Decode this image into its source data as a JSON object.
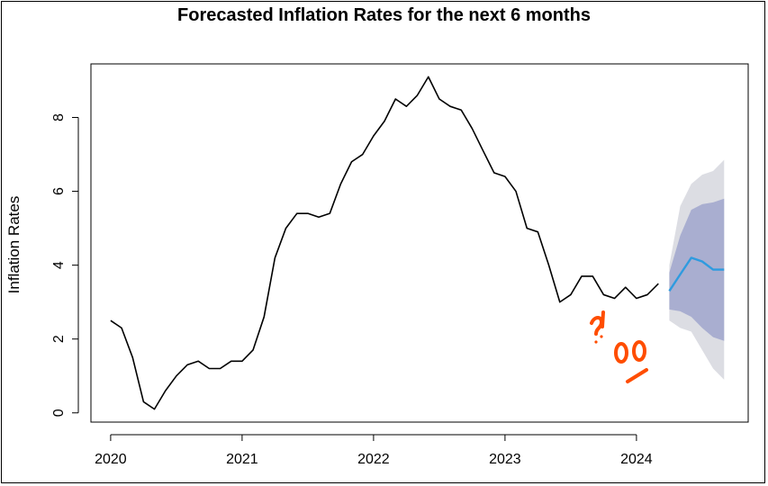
{
  "chart_data": {
    "type": "line",
    "title": "Forecasted Inflation Rates for the next 6 months",
    "xlabel": "",
    "ylabel": "Inflation Rates",
    "xlim": [
      2019.85,
      2024.85
    ],
    "ylim": [
      -0.25,
      9.45
    ],
    "x_ticks": [
      2020,
      2021,
      2022,
      2023,
      2024
    ],
    "x_tick_labels": [
      "2020",
      "2021",
      "2022",
      "2023",
      "2024"
    ],
    "y_ticks": [
      0,
      2,
      4,
      6,
      8
    ],
    "y_tick_labels": [
      "0",
      "2",
      "4",
      "6",
      "8"
    ],
    "grid": false,
    "series": [
      {
        "role": "historical",
        "color": "#000000",
        "x": [
          2020.0,
          2020.083,
          2020.167,
          2020.25,
          2020.333,
          2020.417,
          2020.5,
          2020.583,
          2020.667,
          2020.75,
          2020.833,
          2020.917,
          2021.0,
          2021.083,
          2021.167,
          2021.25,
          2021.333,
          2021.417,
          2021.5,
          2021.583,
          2021.667,
          2021.75,
          2021.833,
          2021.917,
          2022.0,
          2022.083,
          2022.167,
          2022.25,
          2022.333,
          2022.417,
          2022.5,
          2022.583,
          2022.667,
          2022.75,
          2022.833,
          2022.917,
          2023.0,
          2023.083,
          2023.167,
          2023.25,
          2023.333,
          2023.417,
          2023.5,
          2023.583,
          2023.667,
          2023.75,
          2023.833,
          2023.917,
          2024.0,
          2024.083,
          2024.167
        ],
        "y": [
          2.5,
          2.3,
          1.5,
          0.3,
          0.1,
          0.6,
          1.0,
          1.3,
          1.4,
          1.2,
          1.2,
          1.4,
          1.4,
          1.7,
          2.6,
          4.2,
          5.0,
          5.4,
          5.4,
          5.3,
          5.4,
          6.2,
          6.8,
          7.0,
          7.5,
          7.9,
          8.5,
          8.3,
          8.6,
          9.1,
          8.5,
          8.3,
          8.2,
          7.7,
          7.1,
          6.5,
          6.4,
          6.0,
          5.0,
          4.9,
          4.0,
          3.0,
          3.2,
          3.7,
          3.7,
          3.2,
          3.1,
          3.4,
          3.1,
          3.2,
          3.5
        ]
      },
      {
        "role": "forecast",
        "color": "#2f9bdf",
        "x": [
          2024.25,
          2024.333,
          2024.417,
          2024.5,
          2024.583,
          2024.667
        ],
        "y": [
          3.3,
          3.75,
          4.2,
          4.1,
          3.88,
          3.88
        ],
        "interval_80": {
          "color": "#a9aed0",
          "lower": [
            2.8,
            2.75,
            2.6,
            2.3,
            2.05,
            1.95
          ],
          "upper": [
            3.8,
            4.8,
            5.5,
            5.65,
            5.7,
            5.8
          ]
        },
        "interval_95": {
          "color": "#dcdde3",
          "lower": [
            2.5,
            2.3,
            2.2,
            1.7,
            1.2,
            0.9
          ],
          "upper": [
            4.0,
            5.6,
            6.2,
            6.45,
            6.55,
            6.85
          ]
        }
      }
    ]
  }
}
